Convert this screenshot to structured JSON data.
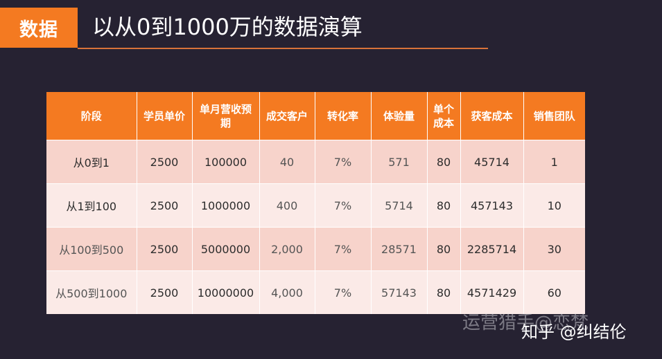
{
  "tag": "数据",
  "title": "以从0到1000万的数据演算",
  "table": {
    "headers": [
      "阶段",
      "学员单价",
      "单月营收预期",
      "成交客户",
      "转化率",
      "体验量",
      "单个成本",
      "获客成本",
      "销售团队"
    ],
    "rows": [
      [
        "从0到1",
        "2500",
        "100000",
        "40",
        "7%",
        "571",
        "80",
        "45714",
        "1"
      ],
      [
        "从1到100",
        "2500",
        "1000000",
        "400",
        "7%",
        "5714",
        "80",
        "457143",
        "10"
      ],
      [
        "从100到500",
        "2500",
        "5000000",
        "2,000",
        "7%",
        "28571",
        "80",
        "2285714",
        "30"
      ],
      [
        "从500到1000",
        "2500",
        "10000000",
        "4,000",
        "7%",
        "57143",
        "80",
        "4571429",
        "60"
      ]
    ]
  },
  "watermark": "运营猎手@恋梵",
  "credit": "知乎 @纠结伦"
}
